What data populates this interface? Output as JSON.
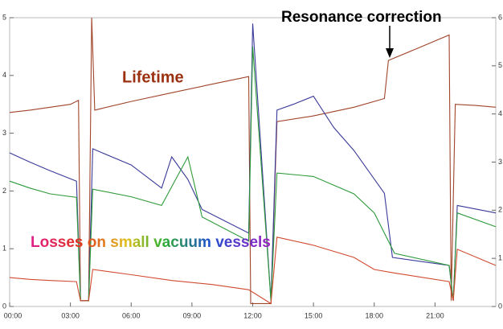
{
  "chart_data": {
    "type": "line",
    "xlim": [
      0,
      24
    ],
    "xticks": [
      {
        "value": 0,
        "label": "00:00"
      },
      {
        "value": 3,
        "label": "03:00"
      },
      {
        "value": 6,
        "label": "06:00"
      },
      {
        "value": 9,
        "label": "09:00"
      },
      {
        "value": 12,
        "label": "12:00"
      },
      {
        "value": 15,
        "label": "15:00"
      },
      {
        "value": 18,
        "label": "18:00"
      },
      {
        "value": 21,
        "label": "21:00"
      }
    ],
    "ylim": [
      0,
      5
    ],
    "yticks": [
      0,
      1,
      2,
      3,
      4,
      5
    ],
    "y2lim": [
      0,
      6
    ],
    "y2ticks": [
      0,
      1,
      2,
      3,
      4,
      5,
      6
    ],
    "annotations": [
      "Resonance correction",
      "Lifetime",
      "Losses on small vacuum vessels"
    ],
    "series": [
      {
        "color": "#a0442a",
        "x": [
          0,
          1,
          2,
          3,
          3.4,
          3.5,
          3.9,
          4.05,
          4.2,
          6,
          8,
          10,
          11.8,
          11.9,
          12.9,
          13.2,
          15,
          17,
          18.5,
          18.7,
          20,
          21.7,
          21.8,
          22,
          23,
          24
        ],
        "values": [
          3.36,
          3.4,
          3.45,
          3.5,
          3.57,
          0.1,
          0.1,
          5.0,
          3.4,
          3.55,
          3.7,
          3.85,
          3.98,
          0.05,
          0.05,
          3.2,
          3.3,
          3.45,
          3.6,
          4.26,
          4.45,
          4.7,
          0.1,
          3.5,
          3.48,
          3.45
        ]
      },
      {
        "color": "#3a3a9a",
        "x": [
          0,
          1,
          2,
          3.3,
          3.5,
          3.9,
          4.1,
          6,
          7.5,
          8.0,
          8.8,
          9.5,
          11.8,
          12.0,
          12.9,
          13.2,
          14,
          15,
          16,
          17,
          18.5,
          18.9,
          21.7,
          21.9,
          22.1,
          24
        ],
        "values": [
          2.66,
          2.5,
          2.35,
          2.17,
          0.1,
          0.1,
          2.73,
          2.45,
          2.05,
          2.59,
          2.2,
          1.68,
          1.27,
          4.9,
          0.1,
          3.4,
          3.5,
          3.64,
          3.1,
          2.7,
          1.96,
          0.85,
          0.71,
          0.1,
          1.75,
          1.62
        ]
      },
      {
        "color": "#2e9a3a",
        "x": [
          0,
          1,
          2,
          3.3,
          3.5,
          3.9,
          4.1,
          6,
          7.5,
          8.8,
          9.5,
          11.8,
          12.0,
          12.9,
          13.2,
          15,
          17,
          18,
          19,
          21.7,
          21.9,
          22.1,
          24
        ],
        "values": [
          2.17,
          2.05,
          1.95,
          1.89,
          0.1,
          0.1,
          2.03,
          1.9,
          1.75,
          2.59,
          1.55,
          1.13,
          4.5,
          0.1,
          2.31,
          2.25,
          1.95,
          1.62,
          0.92,
          0.71,
          0.1,
          1.62,
          1.38
        ]
      },
      {
        "color": "#d04a30",
        "x": [
          0,
          1,
          2,
          3.3,
          3.5,
          3.9,
          4.1,
          6,
          8,
          10,
          11.8,
          12.9,
          13.2,
          15,
          17,
          18,
          19,
          21.7,
          21.9,
          22.1,
          24
        ],
        "values": [
          0.5,
          0.47,
          0.45,
          0.43,
          0.1,
          0.1,
          0.64,
          0.55,
          0.45,
          0.38,
          0.29,
          0.05,
          1.2,
          1.06,
          0.85,
          0.64,
          0.58,
          0.43,
          0.1,
          0.99,
          0.71
        ]
      }
    ]
  }
}
